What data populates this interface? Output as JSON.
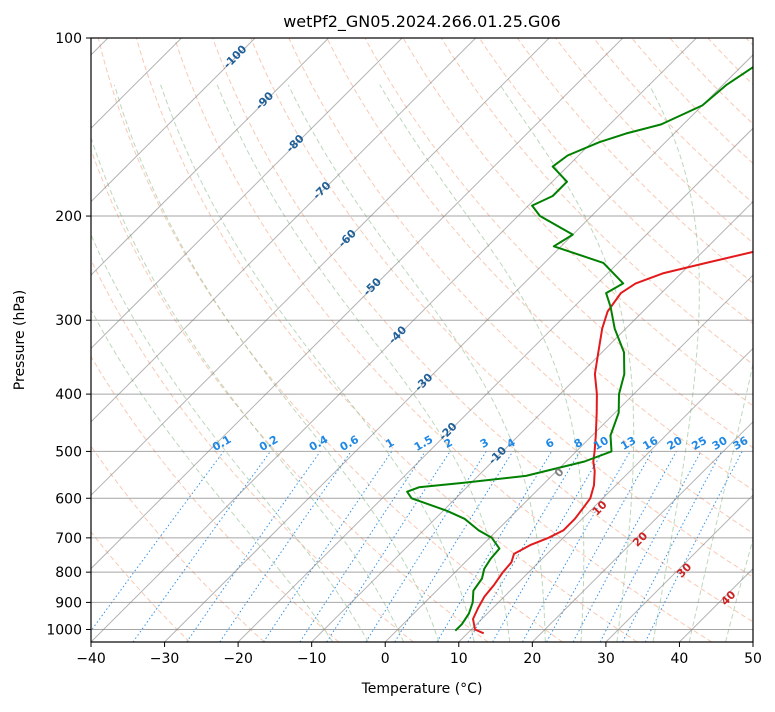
{
  "chart_data": {
    "type": "line",
    "title": "wetPf2_GN05.2024.266.01.25.G06",
    "xlabel": "Temperature (°C)",
    "ylabel": "Pressure (hPa)",
    "xlim": [
      -40,
      50
    ],
    "ylim": [
      1050,
      100
    ],
    "y_scale": "log",
    "grid": true,
    "x_ticks": [
      -40,
      -30,
      -20,
      -10,
      0,
      10,
      20,
      30,
      40,
      50
    ],
    "y_ticks": [
      100,
      200,
      300,
      400,
      500,
      600,
      700,
      800,
      900,
      1000
    ],
    "colors": {
      "temperature": "#e31a1c",
      "dewpoint": "#008000",
      "isotherm": "#808080",
      "dry_adiabat": "#f4a582",
      "moist_adiabat": "#8fbc8f",
      "mixing_ratio": "#1e88e5",
      "isotherm_label": "#1f5f99",
      "moist_label": "#cc2222"
    },
    "series": [
      {
        "key": "temperature",
        "pressure": [
          1015,
          1000,
          960,
          920,
          880,
          840,
          800,
          770,
          745,
          720,
          700,
          680,
          650,
          620,
          600,
          570,
          540,
          520,
          500,
          470,
          430,
          400,
          370,
          340,
          310,
          290,
          270,
          260,
          250,
          240,
          230,
          220,
          210,
          200,
          180,
          160,
          140,
          120,
          110,
          100
        ],
        "values": [
          12.2,
          10.5,
          8.8,
          8.0,
          7.3,
          7.0,
          6.5,
          6.3,
          5.5,
          6.5,
          8.0,
          9.0,
          9.0,
          8.6,
          8.3,
          7.0,
          5.2,
          3.7,
          2.5,
          0.5,
          -2.5,
          -5.0,
          -8.0,
          -10.5,
          -13.2,
          -14.8,
          -15.5,
          -14.8,
          -12.5,
          -8.0,
          -3.2,
          0,
          2.5,
          4.5,
          7.5,
          8.5,
          9.5,
          11.0,
          12.5,
          13.0
        ]
      },
      {
        "key": "dewpoint",
        "pressure": [
          1005,
          980,
          940,
          900,
          860,
          820,
          790,
          760,
          730,
          700,
          680,
          650,
          630,
          600,
          585,
          575,
          565,
          550,
          520,
          500,
          470,
          430,
          400,
          370,
          340,
          310,
          285,
          270,
          260,
          240,
          225,
          215,
          200,
          192,
          185,
          175,
          165,
          158,
          150,
          145,
          140,
          130,
          120,
          110,
          100
        ],
        "values": [
          8.0,
          8.0,
          7.5,
          6.5,
          5.0,
          4.5,
          3.5,
          3.0,
          2.8,
          0.3,
          -2.5,
          -6.0,
          -9.5,
          -16.0,
          -17.5,
          -16.5,
          -11.0,
          -3.5,
          2.5,
          4.8,
          2.5,
          0.5,
          -2.0,
          -4.0,
          -7.0,
          -11.5,
          -15.0,
          -17.5,
          -16.5,
          -22.0,
          -31.0,
          -30.0,
          -37.0,
          -39.5,
          -38.0,
          -38.0,
          -42.0,
          -41.5,
          -39.0,
          -36.5,
          -33.0,
          -30.0,
          -29.5,
          -28.0,
          -25.0
        ]
      }
    ],
    "isotherm_labels": [
      "-100",
      "-90",
      "-80",
      "-70",
      "-60",
      "-50",
      "-40",
      "-30",
      "-20",
      "-10"
    ],
    "mixing_ratio_labels": [
      "0.1",
      "0.2",
      "0.4",
      "0.6",
      "1",
      "1.5",
      "2",
      "3",
      "4",
      "6",
      "8",
      "10",
      "13",
      "16",
      "20",
      "25",
      "30",
      "36"
    ],
    "moist_adiabat_labels": [
      "0",
      "10",
      "20",
      "30",
      "40"
    ]
  }
}
